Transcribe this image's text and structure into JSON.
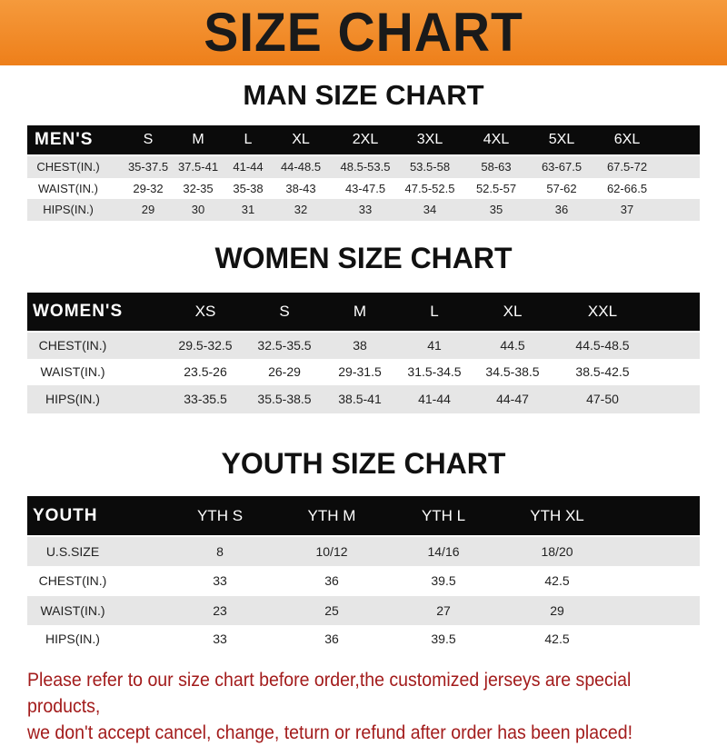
{
  "banner": {
    "title": "SIZE CHART",
    "color": "#f08a24"
  },
  "men": {
    "title": "MAN SIZE CHART",
    "headers": [
      "MEN'S",
      "S",
      "M",
      "L",
      "XL",
      "2XL",
      "3XL",
      "4XL",
      "5XL",
      "6XL"
    ],
    "rows": [
      [
        "CHEST(IN.)",
        "35-37.5",
        "37.5-41",
        "41-44",
        "44-48.5",
        "48.5-53.5",
        "53.5-58",
        "58-63",
        "63-67.5",
        "67.5-72"
      ],
      [
        "WAIST(IN.)",
        "29-32",
        "32-35",
        "35-38",
        "38-43",
        "43-47.5",
        "47.5-52.5",
        "52.5-57",
        "57-62",
        "62-66.5"
      ],
      [
        "HIPS(IN.)",
        "29",
        "30",
        "31",
        "32",
        "33",
        "34",
        "35",
        "36",
        "37"
      ]
    ]
  },
  "women": {
    "title": "WOMEN SIZE CHART",
    "headers": [
      "WOMEN'S",
      "XS",
      "S",
      "M",
      "L",
      "XL",
      "XXL"
    ],
    "rows": [
      [
        "CHEST(IN.)",
        "29.5-32.5",
        "32.5-35.5",
        "38",
        "41",
        "44.5",
        "44.5-48.5"
      ],
      [
        "WAIST(IN.)",
        "23.5-26",
        "26-29",
        "29-31.5",
        "31.5-34.5",
        "34.5-38.5",
        "38.5-42.5"
      ],
      [
        "HIPS(IN.)",
        "33-35.5",
        "35.5-38.5",
        "38.5-41",
        "41-44",
        "44-47",
        "47-50"
      ]
    ]
  },
  "youth": {
    "title": "YOUTH SIZE CHART",
    "headers": [
      "YOUTH",
      "YTH S",
      "YTH M",
      "YTH L",
      "YTH XL"
    ],
    "rows": [
      [
        "U.S.SIZE",
        "8",
        "10/12",
        "14/16",
        "18/20"
      ],
      [
        "CHEST(IN.)",
        "33",
        "36",
        "39.5",
        "42.5"
      ],
      [
        "WAIST(IN.)",
        "23",
        "25",
        "27",
        "29"
      ],
      [
        "HIPS(IN.)",
        "33",
        "36",
        "39.5",
        "42.5"
      ]
    ]
  },
  "note": {
    "line1": "Please refer to our size chart before order,the customized jerseys are special products,",
    "line2": "we don't accept cancel, change, teturn or refund after order has been placed!",
    "color": "#a31c1c"
  }
}
